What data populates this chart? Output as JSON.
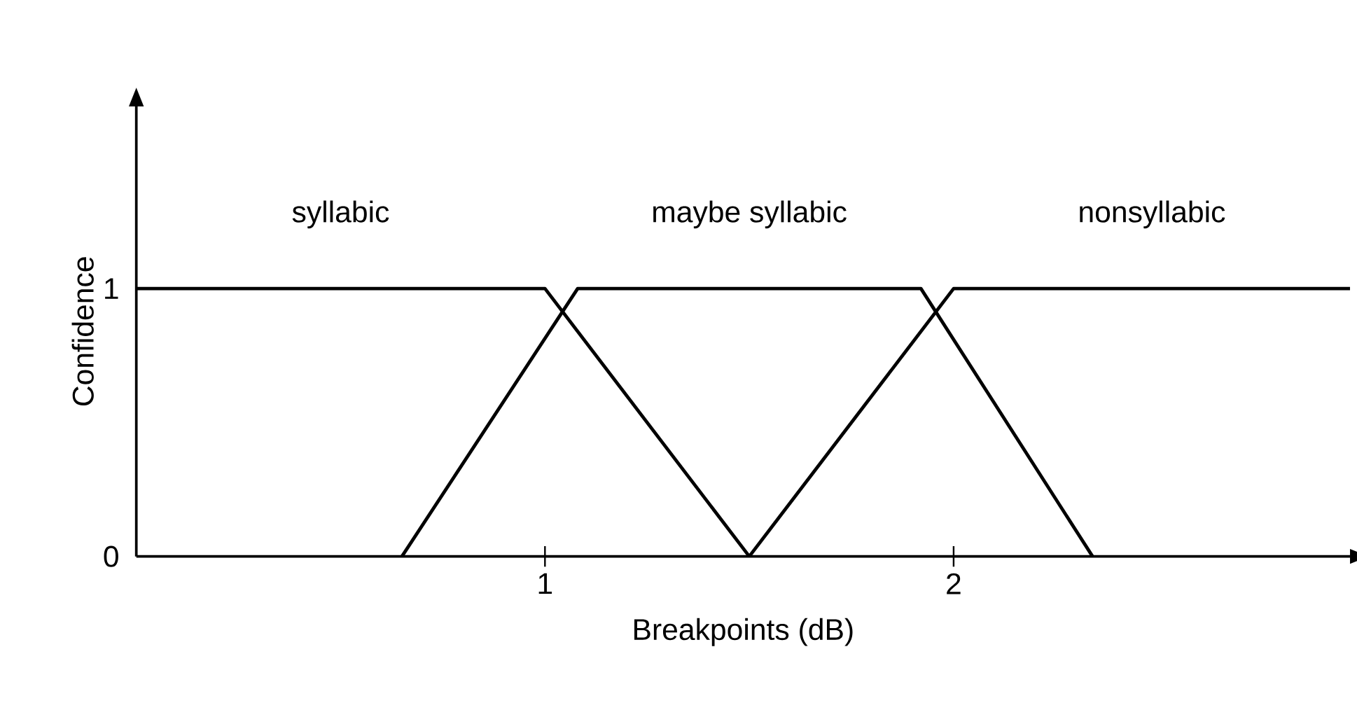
{
  "chart_data": {
    "type": "line",
    "xlabel": "Breakpoints (dB)",
    "ylabel": "Confidence",
    "xlim": [
      0,
      2.97
    ],
    "ylim": [
      0,
      1.68
    ],
    "xticks": [
      1,
      2
    ],
    "yticks": [
      0,
      1
    ],
    "grid": false,
    "legend": false,
    "marker": "none",
    "line_style": "solid",
    "series": [
      {
        "name": "syllabic",
        "color": "#000000",
        "x": [
          0,
          1.0,
          1.5
        ],
        "values": [
          1,
          1,
          0
        ]
      },
      {
        "name": "maybe syllabic",
        "color": "#000000",
        "x": [
          0.65,
          1.08,
          1.92,
          2.34
        ],
        "values": [
          0,
          1,
          1,
          0
        ]
      },
      {
        "name": "nonsyllabic",
        "color": "#000000",
        "x": [
          1.5,
          2.0,
          2.97
        ],
        "values": [
          0,
          1,
          1
        ]
      }
    ]
  }
}
